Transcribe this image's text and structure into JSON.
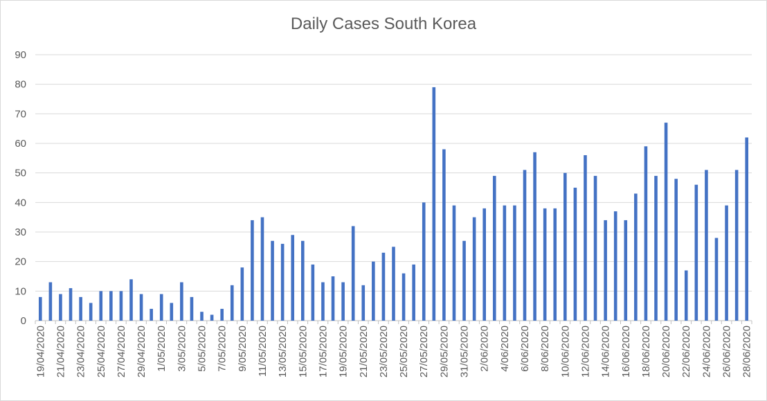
{
  "chart_data": {
    "type": "bar",
    "title": "Daily Cases South Korea",
    "xlabel": "",
    "ylabel": "",
    "ylim": [
      0,
      90
    ],
    "yticks": [
      0,
      10,
      20,
      30,
      40,
      50,
      60,
      70,
      80,
      90
    ],
    "grid": true,
    "legend": "none",
    "bar_color": "#4472c4",
    "categories": [
      "19/04/2020",
      "20/04/2020",
      "21/04/2020",
      "22/04/2020",
      "23/04/2020",
      "24/04/2020",
      "25/04/2020",
      "26/04/2020",
      "27/04/2020",
      "28/04/2020",
      "29/04/2020",
      "30/04/2020",
      "1/05/2020",
      "2/05/2020",
      "3/05/2020",
      "4/05/2020",
      "5/05/2020",
      "6/05/2020",
      "7/05/2020",
      "8/05/2020",
      "9/05/2020",
      "10/05/2020",
      "11/05/2020",
      "12/05/2020",
      "13/05/2020",
      "14/05/2020",
      "15/05/2020",
      "16/05/2020",
      "17/05/2020",
      "18/05/2020",
      "19/05/2020",
      "20/05/2020",
      "21/05/2020",
      "22/05/2020",
      "23/05/2020",
      "24/05/2020",
      "25/05/2020",
      "26/05/2020",
      "27/05/2020",
      "28/05/2020",
      "29/05/2020",
      "30/05/2020",
      "31/05/2020",
      "1/06/2020",
      "2/06/2020",
      "3/06/2020",
      "4/06/2020",
      "5/06/2020",
      "6/06/2020",
      "7/06/2020",
      "8/06/2020",
      "9/06/2020",
      "10/06/2020",
      "11/06/2020",
      "12/06/2020",
      "13/06/2020",
      "14/06/2020",
      "15/06/2020",
      "16/06/2020",
      "17/06/2020",
      "18/06/2020",
      "19/06/2020",
      "20/06/2020",
      "21/06/2020",
      "22/06/2020",
      "23/06/2020",
      "24/06/2020",
      "25/06/2020",
      "26/06/2020",
      "27/06/2020",
      "28/06/2020"
    ],
    "x_tick_labels_shown": [
      "19/04/2020",
      "21/04/2020",
      "23/04/2020",
      "25/04/2020",
      "27/04/2020",
      "29/04/2020",
      "1/05/2020",
      "3/05/2020",
      "5/05/2020",
      "7/05/2020",
      "9/05/2020",
      "11/05/2020",
      "13/05/2020",
      "15/05/2020",
      "17/05/2020",
      "19/05/2020",
      "21/05/2020",
      "23/05/2020",
      "25/05/2020",
      "27/05/2020",
      "29/05/2020",
      "31/05/2020",
      "2/06/2020",
      "4/06/2020",
      "6/06/2020",
      "8/06/2020",
      "10/06/2020",
      "12/06/2020",
      "14/06/2020",
      "16/06/2020",
      "18/06/2020",
      "20/06/2020",
      "22/06/2020",
      "24/06/2020",
      "26/06/2020",
      "28/06/2020"
    ],
    "values": [
      8,
      13,
      9,
      11,
      8,
      6,
      10,
      10,
      10,
      14,
      9,
      4,
      9,
      6,
      13,
      8,
      3,
      2,
      4,
      12,
      18,
      34,
      35,
      27,
      26,
      29,
      27,
      19,
      13,
      15,
      13,
      32,
      12,
      20,
      23,
      25,
      16,
      19,
      40,
      79,
      58,
      39,
      27,
      35,
      38,
      49,
      39,
      39,
      51,
      57,
      38,
      38,
      50,
      45,
      56,
      49,
      34,
      37,
      34,
      43,
      59,
      49,
      67,
      48,
      17,
      46,
      51,
      28,
      39,
      51,
      62
    ]
  }
}
